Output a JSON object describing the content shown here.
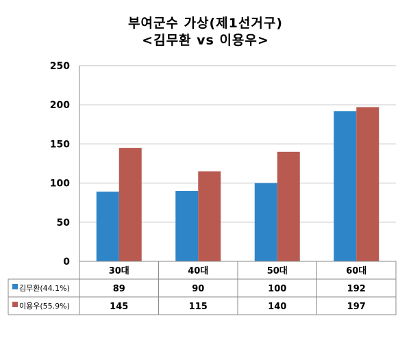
{
  "chart_data": {
    "type": "bar",
    "title": "부여군수 가상(제1선거구)",
    "subtitle": "<김무환 vs 이용우>",
    "categories": [
      "30대",
      "40대",
      "50대",
      "60대"
    ],
    "series": [
      {
        "name": "김무환(44.1%)",
        "color": "#2e86c8",
        "values": [
          89,
          90,
          100,
          192
        ]
      },
      {
        "name": "이용우(55.9%)",
        "color": "#b85a50",
        "values": [
          145,
          115,
          140,
          197
        ]
      }
    ],
    "ylim": [
      0,
      250
    ],
    "yticks": [
      0,
      50,
      100,
      150,
      200,
      250
    ],
    "grid": true,
    "legend": "data-table"
  }
}
